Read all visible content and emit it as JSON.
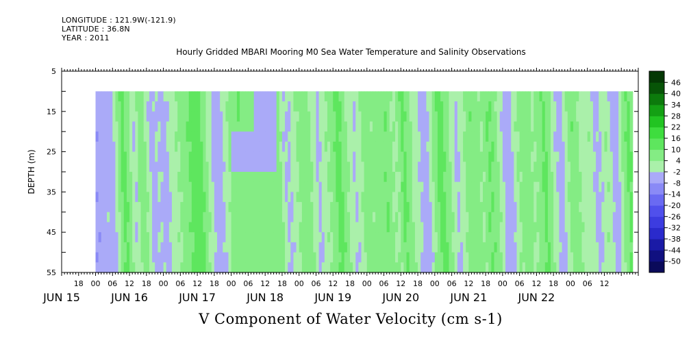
{
  "header": {
    "longitude": "LONGITUDE : 121.9W(-121.9)",
    "latitude": "LATITUDE : 36.8N",
    "year": "YEAR : 2011"
  },
  "chart_data": {
    "type": "heatmap",
    "title": "Hourly Gridded MBARI Mooring M0 Sea Water Temperature and Salinity Observations",
    "xlabel": "",
    "ylabel": "DEPTH (m)",
    "caption": "V Component of Water Velocity (cm s-1)",
    "x_range_hours": [
      -12,
      192
    ],
    "data_x_range_hours": [
      0,
      190
    ],
    "y_range": [
      5,
      55
    ],
    "data_y_range": [
      10,
      55
    ],
    "y_ticks": [
      5,
      15,
      25,
      35,
      45,
      55
    ],
    "y_inverted": true,
    "x_hour_ticks": [
      {
        "t": -6,
        "label": "18"
      },
      {
        "t": 0,
        "label": "00"
      },
      {
        "t": 6,
        "label": "06"
      },
      {
        "t": 12,
        "label": "12"
      },
      {
        "t": 18,
        "label": "18"
      },
      {
        "t": 24,
        "label": "00"
      },
      {
        "t": 30,
        "label": "06"
      },
      {
        "t": 36,
        "label": "12"
      },
      {
        "t": 42,
        "label": "18"
      },
      {
        "t": 48,
        "label": "00"
      },
      {
        "t": 54,
        "label": "06"
      },
      {
        "t": 60,
        "label": "12"
      },
      {
        "t": 66,
        "label": "18"
      },
      {
        "t": 72,
        "label": "00"
      },
      {
        "t": 78,
        "label": "06"
      },
      {
        "t": 84,
        "label": "12"
      },
      {
        "t": 90,
        "label": "18"
      },
      {
        "t": 96,
        "label": "00"
      },
      {
        "t": 102,
        "label": "06"
      },
      {
        "t": 108,
        "label": "12"
      },
      {
        "t": 114,
        "label": "18"
      },
      {
        "t": 120,
        "label": "00"
      },
      {
        "t": 126,
        "label": "06"
      },
      {
        "t": 132,
        "label": "12"
      },
      {
        "t": 138,
        "label": "18"
      },
      {
        "t": 144,
        "label": "00"
      },
      {
        "t": 150,
        "label": "06"
      },
      {
        "t": 156,
        "label": "12"
      },
      {
        "t": 162,
        "label": "18"
      },
      {
        "t": 168,
        "label": "00"
      },
      {
        "t": 174,
        "label": "06"
      },
      {
        "t": 180,
        "label": "12"
      }
    ],
    "x_day_labels": [
      {
        "t": -12,
        "label": "JUN 15"
      },
      {
        "t": 12,
        "label": "JUN 16"
      },
      {
        "t": 36,
        "label": "JUN 17"
      },
      {
        "t": 60,
        "label": "JUN 18"
      },
      {
        "t": 84,
        "label": "JUN 19"
      },
      {
        "t": 108,
        "label": "JUN 20"
      },
      {
        "t": 132,
        "label": "JUN 21"
      },
      {
        "t": 156,
        "label": "JUN 22"
      }
    ],
    "colorbar": {
      "levels": [
        -50,
        -44,
        -38,
        -32,
        -26,
        -20,
        -14,
        -8,
        -2,
        4,
        10,
        16,
        22,
        28,
        34,
        40,
        46
      ],
      "colors": [
        "#0a0a5a",
        "#101080",
        "#1a1aa6",
        "#2a2acc",
        "#3c3ce0",
        "#5050ec",
        "#6a6af2",
        "#8a8af6",
        "#aaaaf8",
        "#aaf0aa",
        "#84ec84",
        "#5ee65e",
        "#3edd3e",
        "#22c422",
        "#14a014",
        "#0c7a0c",
        "#075407",
        "#043804"
      ]
    },
    "time_profile": [
      {
        "t": 0,
        "v": -7
      },
      {
        "t": 3,
        "v": -3
      },
      {
        "t": 5,
        "v": -6
      },
      {
        "t": 7,
        "v": 4
      },
      {
        "t": 9,
        "v": 13
      },
      {
        "t": 11,
        "v": 6
      },
      {
        "t": 13,
        "v": -3
      },
      {
        "t": 15,
        "v": 9
      },
      {
        "t": 17,
        "v": 4
      },
      {
        "t": 19,
        "v": -5
      },
      {
        "t": 21,
        "v": -2
      },
      {
        "t": 24,
        "v": -4
      },
      {
        "t": 27,
        "v": 2
      },
      {
        "t": 30,
        "v": 6
      },
      {
        "t": 34,
        "v": 13
      },
      {
        "t": 36,
        "v": 14
      },
      {
        "t": 38,
        "v": 6
      },
      {
        "t": 41,
        "v": -4
      },
      {
        "t": 44,
        "v": -3
      },
      {
        "t": 47,
        "v": 6
      },
      {
        "t": 50,
        "v": 10
      },
      {
        "t": 53,
        "v": 8
      },
      {
        "t": 56,
        "v": 6
      },
      {
        "t": 59,
        "v": 5
      },
      {
        "t": 62,
        "v": 6
      },
      {
        "t": 64,
        "v": 8
      },
      {
        "t": 66,
        "v": -2
      },
      {
        "t": 68,
        "v": -3
      },
      {
        "t": 70,
        "v": 3
      },
      {
        "t": 72,
        "v": 6
      },
      {
        "t": 74,
        "v": 8
      },
      {
        "t": 76,
        "v": 3
      },
      {
        "t": 78,
        "v": -4
      },
      {
        "t": 80,
        "v": 2
      },
      {
        "t": 83,
        "v": 6
      },
      {
        "t": 85,
        "v": 13
      },
      {
        "t": 87,
        "v": 8
      },
      {
        "t": 89,
        "v": 2
      },
      {
        "t": 91,
        "v": -3
      },
      {
        "t": 93,
        "v": 3
      },
      {
        "t": 95,
        "v": 8
      },
      {
        "t": 97,
        "v": 5
      },
      {
        "t": 100,
        "v": 7
      },
      {
        "t": 102,
        "v": 10
      },
      {
        "t": 104,
        "v": 4
      },
      {
        "t": 106,
        "v": 3
      },
      {
        "t": 108,
        "v": 12
      },
      {
        "t": 110,
        "v": 7
      },
      {
        "t": 112,
        "v": 1
      },
      {
        "t": 115,
        "v": -4
      },
      {
        "t": 117,
        "v": -3
      },
      {
        "t": 119,
        "v": 6
      },
      {
        "t": 121,
        "v": 13
      },
      {
        "t": 123,
        "v": 9
      },
      {
        "t": 125,
        "v": 3
      },
      {
        "t": 127,
        "v": -4
      },
      {
        "t": 129,
        "v": 2
      },
      {
        "t": 132,
        "v": 9
      },
      {
        "t": 134,
        "v": 7
      },
      {
        "t": 136,
        "v": 3
      },
      {
        "t": 138,
        "v": 10
      },
      {
        "t": 140,
        "v": 9
      },
      {
        "t": 142,
        "v": 3
      },
      {
        "t": 144,
        "v": -5
      },
      {
        "t": 146,
        "v": -6
      },
      {
        "t": 148,
        "v": 3
      },
      {
        "t": 150,
        "v": 6
      },
      {
        "t": 152,
        "v": 8
      },
      {
        "t": 154,
        "v": 3
      },
      {
        "t": 156,
        "v": 6
      },
      {
        "t": 158,
        "v": 12
      },
      {
        "t": 160,
        "v": 6
      },
      {
        "t": 162,
        "v": -2
      },
      {
        "t": 164,
        "v": -5
      },
      {
        "t": 166,
        "v": 3
      },
      {
        "t": 168,
        "v": 9
      },
      {
        "t": 170,
        "v": 5
      },
      {
        "t": 172,
        "v": 0
      },
      {
        "t": 174,
        "v": 3
      },
      {
        "t": 176,
        "v": -4
      },
      {
        "t": 178,
        "v": -2
      },
      {
        "t": 180,
        "v": 4
      },
      {
        "t": 182,
        "v": -3
      },
      {
        "t": 184,
        "v": -4
      },
      {
        "t": 186,
        "v": 7
      },
      {
        "t": 188,
        "v": 12
      },
      {
        "t": 190,
        "v": 6
      }
    ],
    "features": [
      {
        "t0": 48,
        "t1": 64,
        "d0": 20,
        "d1": 31,
        "v": -5
      },
      {
        "t0": 48,
        "t1": 64,
        "d0": 31,
        "d1": 37,
        "v": 4
      },
      {
        "t0": 48,
        "t1": 64,
        "d0": 37,
        "d1": 55,
        "v": 7
      },
      {
        "t0": 56,
        "t1": 64,
        "d0": 10,
        "d1": 20,
        "v": -4
      }
    ]
  },
  "colors": {
    "background": "#ffffff",
    "axis": "#000000"
  }
}
